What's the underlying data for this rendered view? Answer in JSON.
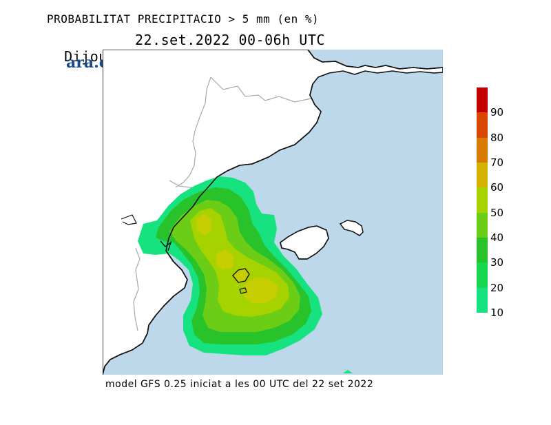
{
  "header": {
    "title": "PROBABILITAT PRECIPITACIO > 5 mm (en %)",
    "day": "Dijous",
    "datetime": "22.set.2022 00-06h UTC"
  },
  "brand": {
    "logo_text": "ara.cat"
  },
  "map": {
    "region": "Catalunya, Balears i Mediterrània occidental",
    "sea_color": "#bcd8ea",
    "land_color": "#ffffff"
  },
  "legend": {
    "labels": [
      "90",
      "80",
      "70",
      "60",
      "50",
      "40",
      "30",
      "20",
      "10"
    ],
    "colors": [
      "#c20000",
      "#d84800",
      "#d97a00",
      "#d6b100",
      "#a6d200",
      "#6ccd17",
      "#28c32a",
      "#17d650",
      "#16e37f"
    ]
  },
  "footer": {
    "text": "model GFS 0.25 iniciat a les 00 UTC del 22 set 2022"
  }
}
